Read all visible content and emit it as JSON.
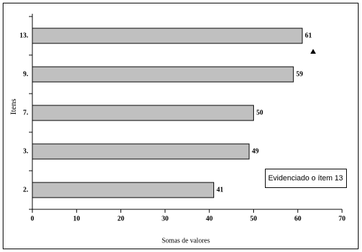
{
  "chart_data": {
    "type": "hbar",
    "categories": [
      "13.",
      "9.",
      "7.",
      "3.",
      "2."
    ],
    "values": [
      61,
      59,
      50,
      49,
      41
    ],
    "color": "#c0c0c0",
    "xlim": [
      0,
      70
    ],
    "xticks": [
      0,
      10,
      20,
      30,
      40,
      50,
      60,
      70
    ],
    "x_label": "Somas de valores",
    "y_label": "Itens",
    "annotation": "Evidenciado o ítem 13"
  }
}
